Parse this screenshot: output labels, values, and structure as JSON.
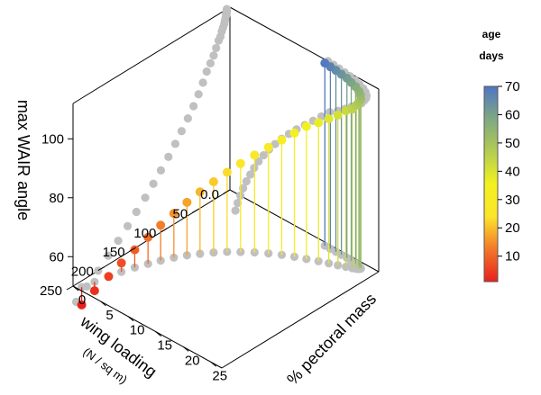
{
  "chart_data": {
    "type": "scatter3d",
    "title": "",
    "axes": {
      "z": {
        "label": "max WAIR angle",
        "ticks": [
          "60",
          "80",
          "100"
        ],
        "range": [
          50,
          112
        ]
      },
      "x": {
        "label": "wing loading",
        "sublabel": "(N / sq m)",
        "ticks": [
          "0.0",
          "50",
          "100",
          "150",
          "200",
          "250"
        ],
        "range": [
          0,
          250
        ]
      },
      "y": {
        "label": "% pectoral mass",
        "ticks": [
          "0",
          "5",
          "10",
          "15",
          "20",
          "25"
        ],
        "range": [
          0,
          27
        ]
      }
    },
    "colorbar": {
      "title_line1": "age",
      "title_line2": "days",
      "ticks": [
        "10",
        "20",
        "30",
        "40",
        "50",
        "60",
        "70"
      ],
      "range": [
        1,
        70
      ],
      "colors": [
        "#e8201c",
        "#f3782a",
        "#fce52a",
        "#f2f21e",
        "#b3cc52",
        "#7fa882",
        "#4f75c4"
      ]
    },
    "projection_color": "#c0c0c0",
    "series": [
      {
        "value_keys": [
          "age_days",
          "wing_loading",
          "pectoral_mass_pct",
          "max_wair_angle"
        ],
        "points": [
          [
            1,
            245,
            1.0,
            44
          ],
          [
            3,
            228,
            1.4,
            47
          ],
          [
            5,
            210,
            1.9,
            50
          ],
          [
            7,
            194,
            2.4,
            53
          ],
          [
            9,
            178,
            3.0,
            56
          ],
          [
            11,
            163,
            3.7,
            59
          ],
          [
            13,
            149,
            4.4,
            62
          ],
          [
            15,
            135,
            5.2,
            65
          ],
          [
            17,
            122,
            6.1,
            68
          ],
          [
            19,
            110,
            7.1,
            71
          ],
          [
            21,
            98,
            8.2,
            74
          ],
          [
            23,
            87,
            9.4,
            77
          ],
          [
            25,
            77,
            10.7,
            80
          ],
          [
            27,
            67,
            12.1,
            83
          ],
          [
            29,
            58,
            13.6,
            86
          ],
          [
            31,
            50,
            15.1,
            89
          ],
          [
            33,
            43,
            16.6,
            92
          ],
          [
            35,
            37,
            18.1,
            95
          ],
          [
            37,
            31,
            19.6,
            97
          ],
          [
            39,
            26,
            20.9,
            99
          ],
          [
            41,
            22,
            22.1,
            101
          ],
          [
            43,
            18,
            23.1,
            103
          ],
          [
            45,
            15,
            23.9,
            104
          ],
          [
            47,
            13,
            24.4,
            105.5
          ],
          [
            49,
            11,
            24.7,
            106.5
          ],
          [
            51,
            9,
            24.8,
            107.5
          ],
          [
            53,
            8,
            24.6,
            108.5
          ],
          [
            55,
            7,
            24.2,
            109.3
          ],
          [
            57,
            6,
            23.5,
            110
          ],
          [
            59,
            6,
            22.7,
            110.6
          ],
          [
            61,
            5,
            21.8,
            111
          ],
          [
            63,
            5,
            20.8,
            111.3
          ],
          [
            65,
            5,
            19.8,
            111.6
          ],
          [
            67,
            5,
            18.8,
            111.8
          ],
          [
            69,
            5,
            17.8,
            112
          ]
        ]
      }
    ]
  }
}
